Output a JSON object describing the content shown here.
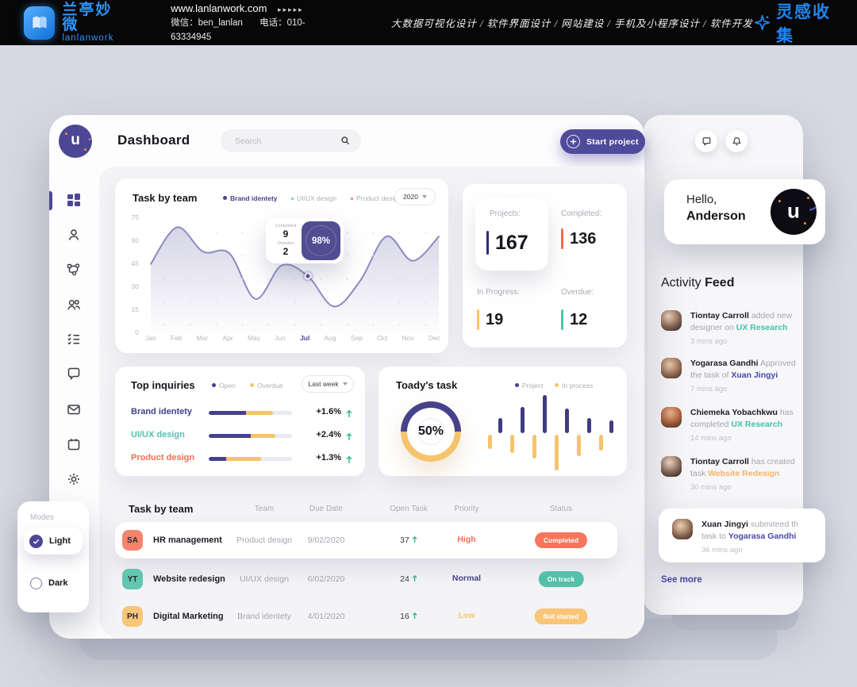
{
  "banner": {
    "brand_cn": "兰亭妙微",
    "brand_en": "lanlanwork",
    "website": "www.lanlanwork.com",
    "arrows": "▸▸▸▸▸",
    "wechat": "微信：ben_lanlan",
    "phone": "电话：010-63334945",
    "services": "大数据可视化设计 / 软件界面设计 / 网站建设 / 手机及小程序设计 / 软件开发",
    "collect": "灵感收集"
  },
  "header": {
    "title": "Dashboard",
    "search_placeholder": "Search",
    "start_button": "Start project",
    "logo_letter": "u"
  },
  "task_chart": {
    "title": "Task by team",
    "legend": [
      {
        "label": "Brand identety"
      },
      {
        "label": "UI/UX design"
      },
      {
        "label": "Product design"
      }
    ],
    "year": "2020",
    "y_ticks": [
      "75",
      "60",
      "45",
      "30",
      "15",
      "0"
    ],
    "months": [
      "Jan",
      "Feb",
      "Mar",
      "Apr",
      "May",
      "Jun",
      "Jul",
      "Aug",
      "Sep",
      "Oct",
      "Nov",
      "Dec"
    ],
    "tooltip": {
      "completed_label": "Completed",
      "completed_value": "9",
      "overdue_label": "Overdue",
      "overdue_value": "2",
      "percent": "98%"
    }
  },
  "stats": {
    "projects_label": "Projects:",
    "projects_value": "167",
    "completed_label": "Completed:",
    "completed_value": "136",
    "inprogress_label": "In Progress:",
    "inprogress_value": "19",
    "overdue_label": "Overdue:",
    "overdue_value": "12"
  },
  "hello": {
    "greeting": "Hello,",
    "name": "Anderson",
    "logo_letter": "u"
  },
  "activity": {
    "title_a": "Activity",
    "title_b": "Feed",
    "items": [
      {
        "name": "Tiontay Carroll",
        "text": "added new designer on",
        "link": "UX Research",
        "time": "3 mins ago"
      },
      {
        "name": "Yogarasa Gandhi",
        "text": "Approved the task of",
        "link": "Xuan Jingyi",
        "time": "7 mins ago"
      },
      {
        "name": "Chiemeka Yobachkwu",
        "text": "has completed",
        "link": "UX Research",
        "time": "14 mins ago"
      },
      {
        "name": "Tiontay Carroll",
        "text": "has created task",
        "link": "Website Redesign",
        "time": "30 mins ago"
      },
      {
        "name": "Xuan Jingyi",
        "text": "submiteed th task to",
        "link": "Yogarasa Gandhi",
        "time": "36 mins ago"
      }
    ],
    "see_more": "See more"
  },
  "inquiries": {
    "title": "Top inquiries",
    "legend_open": "Open",
    "legend_overdue": "Overdue",
    "range": "Last week",
    "rows": [
      {
        "label": "Brand identety",
        "change": "+1.6%",
        "open_pct": 45,
        "overdue_pct": 32
      },
      {
        "label": "UI/UX design",
        "change": "+2.4%",
        "open_pct": 50,
        "overdue_pct": 30
      },
      {
        "label": "Product design",
        "change": "+1.3%",
        "open_pct": 21,
        "overdue_pct": 42
      }
    ]
  },
  "today": {
    "title": "Toady's task",
    "legend_project": "Project",
    "legend_process": "In process",
    "percent": "50%"
  },
  "table": {
    "title": "Task by team",
    "columns": [
      "Team",
      "Due Date",
      "Open Task",
      "Priority",
      "Status"
    ],
    "rows": [
      {
        "badge": "SA",
        "name": "HR management",
        "team": "Product design",
        "due": "9/02/2020",
        "open": "37",
        "priority": "High",
        "status": "Completed"
      },
      {
        "badge": "YT",
        "name": "Website redesign",
        "team": "UI/UX design",
        "due": "6/02/2020",
        "open": "24",
        "priority": "Normal",
        "status": "On track"
      },
      {
        "badge": "PH",
        "name": "Digital Marketing",
        "team": "Brand identety",
        "due": "4/01/2020",
        "open": "16",
        "priority": "Low",
        "status": "Not started"
      }
    ]
  },
  "modes": {
    "label": "Modes",
    "light": "Light",
    "dark": "Dark"
  },
  "colors": {
    "indigo": "#4b4795",
    "salmon": "#f56c4f",
    "yellow": "#f6c36c",
    "teal": "#4fc4ae",
    "green": "#27b57c",
    "banner_blue": "#1d86f2"
  },
  "chart_data": [
    {
      "type": "line",
      "title": "Task by team",
      "x": [
        "Jan",
        "Feb",
        "Mar",
        "Apr",
        "May",
        "Jun",
        "Jul",
        "Aug",
        "Sep",
        "Oct",
        "Nov",
        "Dec"
      ],
      "series": [
        {
          "name": "Brand identety",
          "values": [
            46,
            70,
            54,
            53,
            23,
            45,
            38,
            18,
            35,
            64,
            48,
            64
          ]
        }
      ],
      "ylim": [
        0,
        75
      ],
      "yticks": [
        0,
        15,
        30,
        45,
        60,
        75
      ],
      "highlight_index": 6,
      "tooltip": {
        "completed": 9,
        "overdue": 2,
        "percent": 98
      },
      "legend": [
        "Brand identety",
        "UI/UX design",
        "Product design"
      ],
      "legend_position": "top",
      "grid": "dotted"
    },
    {
      "type": "bar",
      "title": "Toady's task",
      "series": [
        {
          "name": "Project",
          "direction": "up",
          "values": [
            13,
            22,
            32,
            21,
            13,
            11
          ]
        },
        {
          "name": "In process",
          "direction": "down",
          "values": [
            12,
            15,
            20,
            30,
            18,
            13
          ]
        }
      ],
      "donut_percent": 50
    },
    {
      "type": "bar",
      "title": "Top inquiries",
      "categories": [
        "Brand identety",
        "UI/UX design",
        "Product design"
      ],
      "series": [
        {
          "name": "Open",
          "values": [
            45,
            50,
            21
          ]
        },
        {
          "name": "Overdue",
          "values": [
            32,
            30,
            42
          ]
        }
      ],
      "unit": "percent-of-track",
      "changes": [
        "+1.6%",
        "+2.4%",
        "+1.3%"
      ]
    }
  ]
}
